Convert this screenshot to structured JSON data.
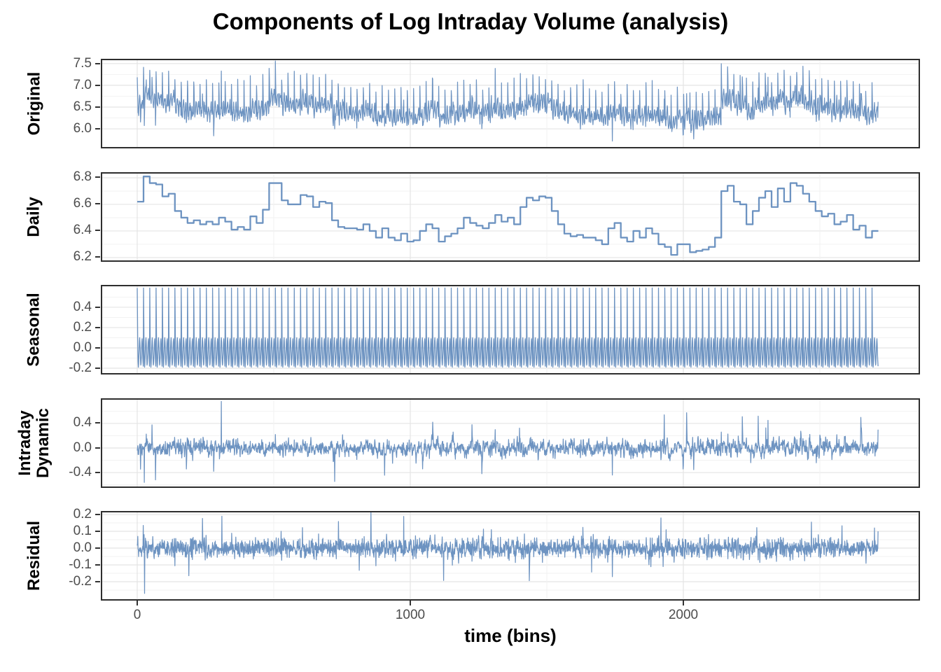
{
  "title": "Components of Log Intraday Volume (analysis)",
  "xlabel": "time (bins)",
  "colors": {
    "line": "#6d93c1",
    "grid_major": "#e4e4e4",
    "grid_minor": "#f2f2f2",
    "panel_border": "#2e2e2e",
    "tick_mark": "#333333",
    "tick_label": "#4d4d4d",
    "text": "#000000",
    "background": "#ffffff"
  },
  "x_axis": {
    "tick_labels": [
      "0",
      "1000",
      "2000"
    ],
    "tick_bins": [
      0,
      1000,
      2000
    ],
    "minor_bins": [
      500,
      1500,
      2500
    ]
  },
  "chart_data": {
    "type": "line",
    "title": "Components of Log Intraday Volume (analysis)",
    "xlabel": "time (bins)",
    "n_bins": 2714,
    "bins_per_day": 23,
    "n_days": 118,
    "x_domain": [
      0,
      2714
    ],
    "x_ticks": [
      0,
      1000,
      2000
    ],
    "legend": "none",
    "grid": "on",
    "panels": [
      {
        "label": "Original",
        "label_lines": [
          "Original"
        ],
        "kind": "composite",
        "composition": "daily + seasonal + intraday_dynamic + residual",
        "yticks": [
          6.0,
          6.5,
          7.0,
          7.5
        ],
        "minor_gridlines": [
          6.25,
          6.75,
          7.25
        ],
        "ylim": [
          5.55,
          7.61
        ],
        "approx_range": [
          5.65,
          7.55
        ]
      },
      {
        "label": "Daily",
        "label_lines": [
          "Daily"
        ],
        "kind": "step_per_day",
        "yticks": [
          6.2,
          6.4,
          6.6,
          6.8
        ],
        "minor_gridlines": [
          6.3,
          6.5,
          6.7
        ],
        "ylim": [
          6.168,
          6.842
        ],
        "values": [
          6.62,
          6.81,
          6.76,
          6.75,
          6.66,
          6.68,
          6.55,
          6.5,
          6.46,
          6.48,
          6.45,
          6.47,
          6.45,
          6.5,
          6.47,
          6.41,
          6.43,
          6.41,
          6.51,
          6.46,
          6.56,
          6.76,
          6.76,
          6.63,
          6.6,
          6.6,
          6.67,
          6.66,
          6.58,
          6.62,
          6.61,
          6.48,
          6.43,
          6.42,
          6.42,
          6.41,
          6.45,
          6.4,
          6.35,
          6.42,
          6.35,
          6.33,
          6.38,
          6.32,
          6.33,
          6.4,
          6.45,
          6.42,
          6.32,
          6.36,
          6.38,
          6.42,
          6.5,
          6.46,
          6.44,
          6.42,
          6.46,
          6.52,
          6.47,
          6.5,
          6.45,
          6.58,
          6.65,
          6.63,
          6.66,
          6.65,
          6.55,
          6.45,
          6.38,
          6.36,
          6.37,
          6.35,
          6.35,
          6.33,
          6.3,
          6.42,
          6.46,
          6.35,
          6.32,
          6.4,
          6.35,
          6.42,
          6.38,
          6.3,
          6.28,
          6.22,
          6.3,
          6.3,
          6.24,
          6.25,
          6.26,
          6.28,
          6.35,
          6.7,
          6.74,
          6.62,
          6.6,
          6.45,
          6.55,
          6.65,
          6.7,
          6.58,
          6.72,
          6.62,
          6.76,
          6.74,
          6.68,
          6.62,
          6.55,
          6.51,
          6.53,
          6.45,
          6.47,
          6.52,
          6.41,
          6.44,
          6.35,
          6.4
        ]
      },
      {
        "label": "Seasonal",
        "label_lines": [
          "Seasonal"
        ],
        "kind": "repeat_profile",
        "yticks": [
          -0.2,
          0.0,
          0.2,
          0.4
        ],
        "minor_gridlines": [
          -0.1,
          0.1,
          0.3,
          0.5
        ],
        "ylim": [
          -0.262,
          0.62
        ],
        "profile": [
          0.59,
          0.31,
          -0.02,
          -0.14,
          -0.19,
          -0.16,
          -0.09,
          0.0,
          0.07,
          0.1,
          0.05,
          -0.04,
          -0.12,
          -0.17,
          -0.15,
          -0.09,
          -0.01,
          0.06,
          0.09,
          0.04,
          -0.06,
          -0.13,
          -0.18
        ]
      },
      {
        "label": "Intraday Dynamic",
        "label_lines": [
          "Intraday",
          "Dynamic"
        ],
        "kind": "noise",
        "yticks": [
          -0.4,
          0.0,
          0.4
        ],
        "minor_gridlines": [
          -0.6,
          -0.2,
          0.2,
          0.6
        ],
        "ylim": [
          -0.65,
          0.81
        ],
        "noise": {
          "sd": 0.062,
          "ar": 0.45,
          "tail_prob": 0.02,
          "tail_scale": 2.8,
          "seed": 1234
        },
        "spikes": [
          [
            26,
            -0.56
          ],
          [
            308,
            0.76
          ],
          [
            506,
            0.22
          ],
          [
            1311,
            0.3
          ],
          [
            1740,
            -0.44
          ],
          [
            1930,
            0.54
          ],
          [
            2139,
            0.26
          ],
          [
            2310,
            0.45
          ],
          [
            2713,
            0.3
          ]
        ]
      },
      {
        "label": "Residual",
        "label_lines": [
          "Residual"
        ],
        "kind": "noise",
        "yticks": [
          -0.2,
          -0.1,
          0.0,
          0.1,
          0.2
        ],
        "minor_gridlines": [
          -0.25,
          -0.15,
          -0.05,
          0.05,
          0.15
        ],
        "ylim": [
          -0.3125,
          0.221
        ],
        "noise": {
          "sd": 0.028,
          "ar": 0.15,
          "tail_prob": 0.025,
          "tail_scale": 2.2,
          "seed": 99
        },
        "spikes": [
          [
            22,
            0.135
          ],
          [
            27,
            -0.27
          ],
          [
            310,
            0.19
          ],
          [
            1297,
            0.11
          ],
          [
            1740,
            -0.17
          ],
          [
            1918,
            0.18
          ],
          [
            1926,
            -0.11
          ],
          [
            2469,
            0.155
          ],
          [
            2700,
            0.12
          ],
          [
            2713,
            0.1
          ]
        ]
      }
    ]
  }
}
